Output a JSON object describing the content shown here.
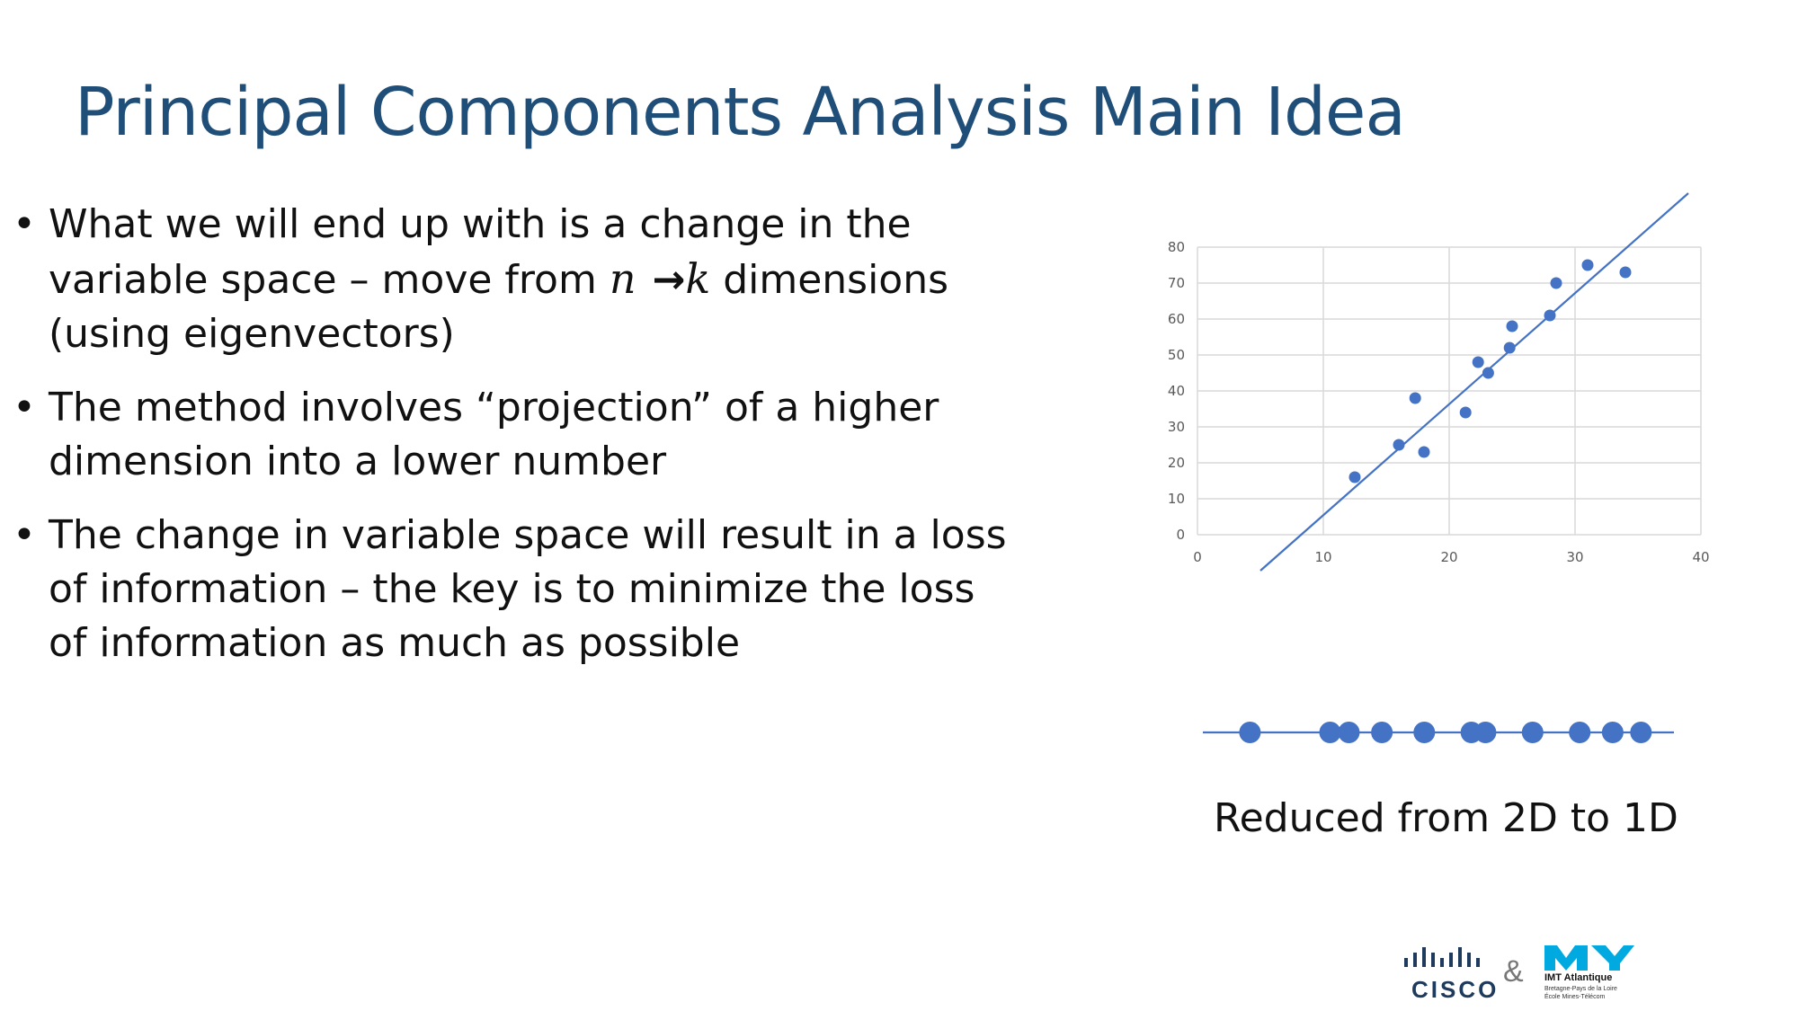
{
  "title": "Principal Components Analysis Main Idea",
  "bullets": [
    {
      "line1": "What we will end up with is a change in the",
      "line2_pre": "variable space – move from ",
      "var_n": "n",
      "arrow": "→",
      "var_k": "k",
      "line2_post": " dimensions",
      "line3": "(using eigenvectors)"
    },
    {
      "line1": "The method involves “projection” of a higher",
      "line2": "dimension into a lower number"
    },
    {
      "line1": "The change in variable space will result in a loss",
      "line2": "of information – the key is to minimize the loss",
      "line3": "of information as much as possible"
    }
  ],
  "bullet_symbol": "•",
  "chart_data": {
    "type": "scatter",
    "title": "",
    "xlabel": "",
    "ylabel": "",
    "xlim": [
      0,
      40
    ],
    "ylim": [
      0,
      80
    ],
    "x_ticks": [
      0,
      10,
      20,
      30,
      40
    ],
    "y_ticks": [
      0,
      10,
      20,
      30,
      40,
      50,
      60,
      70,
      80
    ],
    "grid": true,
    "series": [
      {
        "x": [
          12.5,
          16,
          17.3,
          18,
          21.3,
          22.3,
          23.1,
          24.8,
          25,
          28,
          28.5,
          31,
          34
        ],
        "y": [
          16,
          25,
          38,
          23,
          34,
          48,
          45,
          52,
          58,
          61,
          70,
          75,
          73
        ],
        "color": "#4472c4"
      }
    ],
    "trend_line": {
      "from": [
        5,
        -10
      ],
      "to": [
        39,
        95
      ],
      "color": "#4472c4"
    }
  },
  "projection": {
    "points": [
      0.1,
      0.27,
      0.31,
      0.38,
      0.47,
      0.57,
      0.6,
      0.7,
      0.8,
      0.87,
      0.93
    ],
    "color": "#4472c4"
  },
  "caption": "Reduced from 2D to 1D",
  "footer": {
    "cisco_word": "CISCO",
    "ampersand": "&",
    "imt_name": "IMT Atlantique",
    "imt_sub1": "Bretagne-Pays de la Loire",
    "imt_sub2": "École Mines-Télécom",
    "cisco_color": "#1e3a5c",
    "imt_color": "#00a9e0"
  }
}
